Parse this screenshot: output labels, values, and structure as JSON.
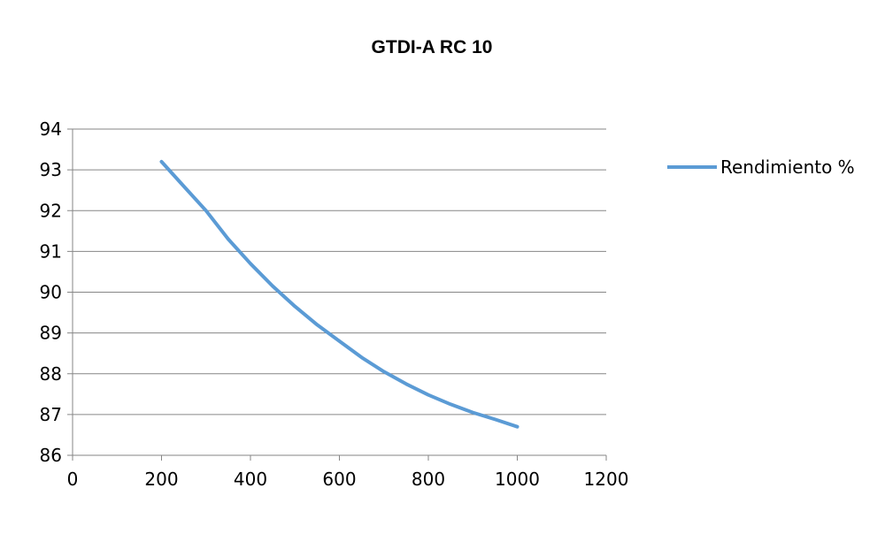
{
  "chart_data": {
    "type": "line",
    "title": "GTDI-A RC 10",
    "xlabel": "",
    "ylabel": "",
    "xlim": [
      0,
      1200
    ],
    "ylim": [
      86,
      94
    ],
    "x_ticks": [
      0,
      200,
      400,
      600,
      800,
      1000,
      1200
    ],
    "y_ticks": [
      86,
      87,
      88,
      89,
      90,
      91,
      92,
      93,
      94
    ],
    "grid": {
      "horizontal": true,
      "vertical": false
    },
    "legend_position": "right",
    "series": [
      {
        "name": "Rendimiento %",
        "color": "#5b9bd5",
        "x": [
          200,
          250,
          300,
          350,
          400,
          450,
          500,
          550,
          600,
          650,
          700,
          750,
          800,
          850,
          900,
          950,
          1000
        ],
        "y": [
          93.2,
          92.6,
          92.0,
          91.3,
          90.7,
          90.15,
          89.65,
          89.2,
          88.8,
          88.4,
          88.05,
          87.75,
          87.48,
          87.25,
          87.05,
          86.88,
          86.7
        ]
      }
    ]
  }
}
